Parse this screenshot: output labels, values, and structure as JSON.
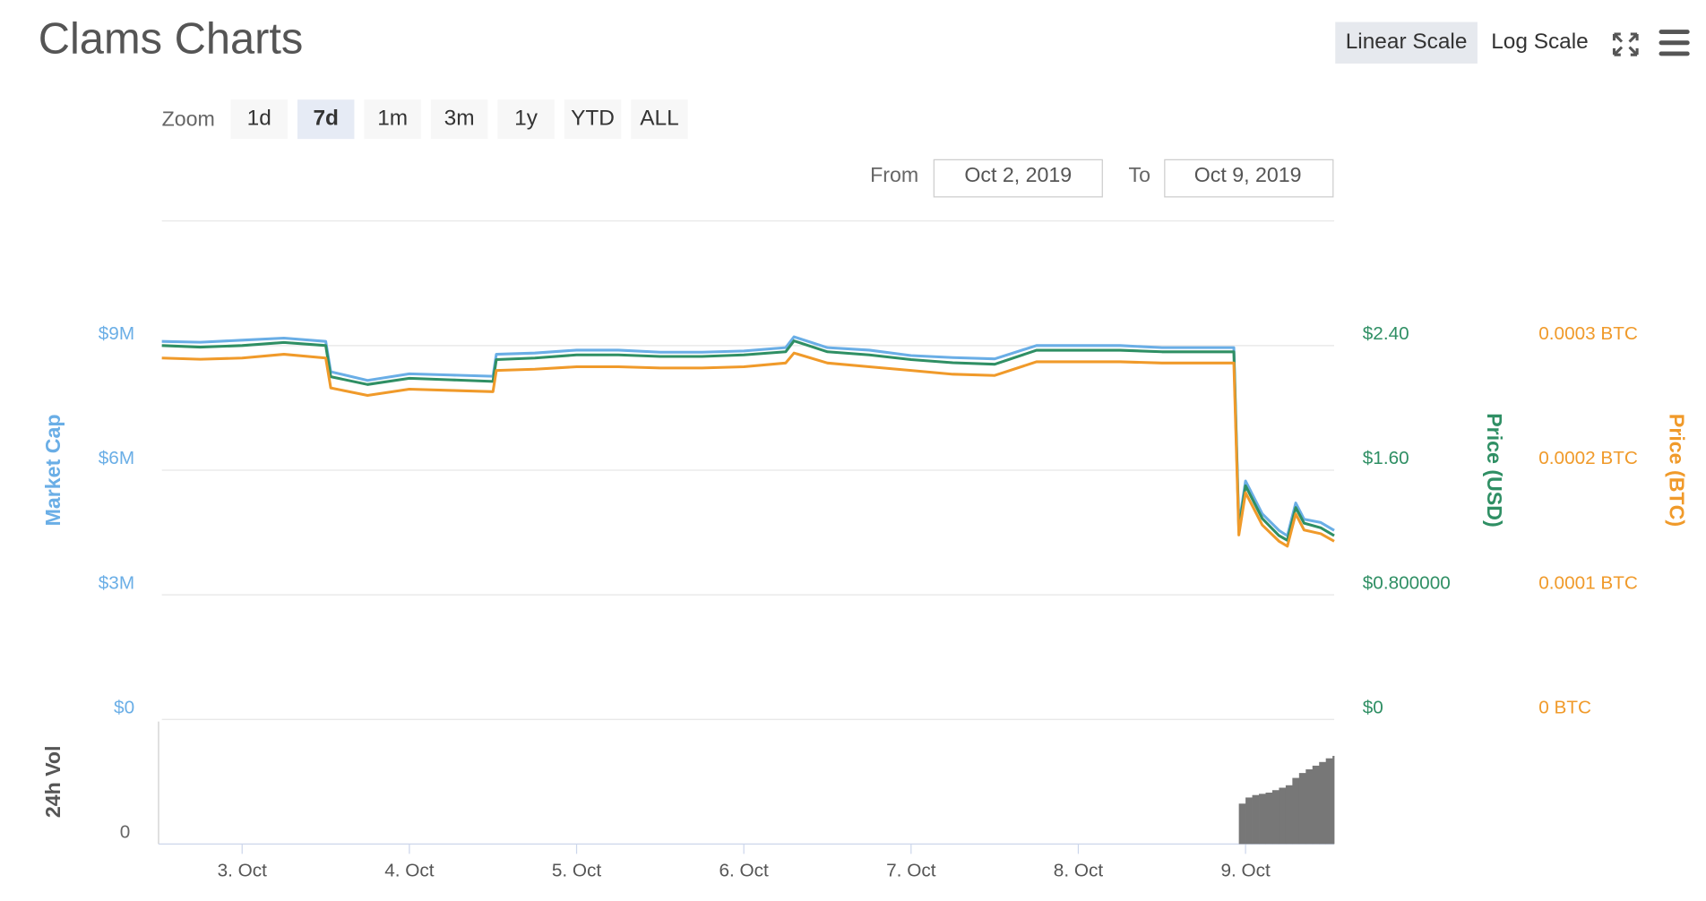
{
  "ui": {
    "title": "Clams Charts",
    "scale_buttons": [
      "Linear Scale",
      "Log Scale"
    ],
    "active_scale": 0,
    "zoom_label": "Zoom",
    "zoom_buttons": [
      "1d",
      "7d",
      "1m",
      "3m",
      "1y",
      "YTD",
      "ALL"
    ],
    "active_zoom": 1,
    "from_label": "From",
    "from_value": "Oct 2, 2019",
    "to_label": "To",
    "to_value": "Oct 9, 2019"
  },
  "chart_data": [
    {
      "type": "line",
      "grid": true,
      "ylabel": "Market Cap",
      "y2label": "Price (USD)",
      "y3label": "Price (BTC)",
      "xlim": [
        2.52,
        9.53
      ],
      "ylim": [
        0,
        12000000
      ],
      "yticks": [
        {
          "value": 0,
          "label": "$0"
        },
        {
          "value": 3000000,
          "label": "$3M"
        },
        {
          "value": 6000000,
          "label": "$6M"
        },
        {
          "value": 9000000,
          "label": "$9M"
        }
      ],
      "y2lim": [
        0,
        3.2
      ],
      "y2ticks": [
        {
          "value": 0,
          "label": "$0"
        },
        {
          "value": 0.8,
          "label": "$0.800000"
        },
        {
          "value": 1.6,
          "label": "$1.60"
        },
        {
          "value": 2.4,
          "label": "$2.40"
        }
      ],
      "y3lim": [
        0,
        0.0004
      ],
      "y3ticks": [
        {
          "value": 0,
          "label": "0 BTC"
        },
        {
          "value": 0.0001,
          "label": "0.0001 BTC"
        },
        {
          "value": 0.0002,
          "label": "0.0002 BTC"
        },
        {
          "value": 0.0003,
          "label": "0.0003 BTC"
        }
      ],
      "x": [
        2.52,
        2.75,
        3.0,
        3.25,
        3.5,
        3.53,
        3.75,
        4.0,
        4.25,
        4.5,
        4.52,
        4.75,
        5.0,
        5.25,
        5.5,
        5.75,
        6.0,
        6.25,
        6.3,
        6.5,
        6.75,
        7.0,
        7.25,
        7.5,
        7.75,
        8.0,
        8.25,
        8.5,
        8.75,
        8.93,
        8.96,
        9.0,
        9.1,
        9.2,
        9.25,
        9.3,
        9.35,
        9.45,
        9.53
      ],
      "series": [
        {
          "axis": "y",
          "color": "#6aaee6",
          "values": [
            9100000,
            9080000,
            9130000,
            9180000,
            9100000,
            8370000,
            8160000,
            8320000,
            8290000,
            8260000,
            8790000,
            8820000,
            8890000,
            8890000,
            8840000,
            8840000,
            8870000,
            8950000,
            9210000,
            8950000,
            8890000,
            8760000,
            8710000,
            8680000,
            9000000,
            9000000,
            9000000,
            8950000,
            8950000,
            8950000,
            4680000,
            5740000,
            4950000,
            4550000,
            4420000,
            5210000,
            4820000,
            4740000,
            4550000
          ]
        },
        {
          "axis": "y2",
          "color": "#2f8f64",
          "values": [
            2.4,
            2.39,
            2.4,
            2.42,
            2.4,
            2.2,
            2.15,
            2.19,
            2.18,
            2.17,
            2.31,
            2.32,
            2.34,
            2.34,
            2.33,
            2.33,
            2.34,
            2.36,
            2.43,
            2.36,
            2.34,
            2.31,
            2.29,
            2.28,
            2.37,
            2.37,
            2.37,
            2.36,
            2.36,
            2.36,
            1.22,
            1.5,
            1.29,
            1.18,
            1.15,
            1.36,
            1.26,
            1.23,
            1.18
          ]
        },
        {
          "axis": "y3",
          "color": "#f09a2a",
          "values": [
            0.00029,
            0.000289,
            0.00029,
            0.000293,
            0.00029,
            0.000266,
            0.00026,
            0.000265,
            0.000264,
            0.000263,
            0.00028,
            0.000281,
            0.000283,
            0.000283,
            0.000282,
            0.000282,
            0.000283,
            0.000286,
            0.000294,
            0.000286,
            0.000283,
            0.00028,
            0.000277,
            0.000276,
            0.000287,
            0.000287,
            0.000287,
            0.000286,
            0.000286,
            0.000286,
            0.000148,
            0.000182,
            0.000156,
            0.000143,
            0.000139,
            0.000165,
            0.000152,
            0.000149,
            0.000143
          ]
        }
      ]
    },
    {
      "type": "bar",
      "ylabel": "24h Vol",
      "color": "#777777",
      "xlim": [
        2.52,
        9.53
      ],
      "xticks": [
        {
          "value": 3,
          "label": "3. Oct"
        },
        {
          "value": 4,
          "label": "4. Oct"
        },
        {
          "value": 5,
          "label": "5. Oct"
        },
        {
          "value": 6,
          "label": "6. Oct"
        },
        {
          "value": 7,
          "label": "7. Oct"
        },
        {
          "value": 8,
          "label": "8. Oct"
        },
        {
          "value": 9,
          "label": "9. Oct"
        }
      ],
      "ylim": [
        0,
        100
      ],
      "yticks": [
        0
      ],
      "x": [
        8.96,
        9.0,
        9.04,
        9.08,
        9.12,
        9.16,
        9.2,
        9.24,
        9.28,
        9.32,
        9.36,
        9.4,
        9.44,
        9.48,
        9.52
      ],
      "values": [
        33,
        38,
        40,
        41,
        42,
        44,
        46,
        48,
        54,
        58,
        61,
        64,
        67,
        70,
        72
      ]
    }
  ]
}
